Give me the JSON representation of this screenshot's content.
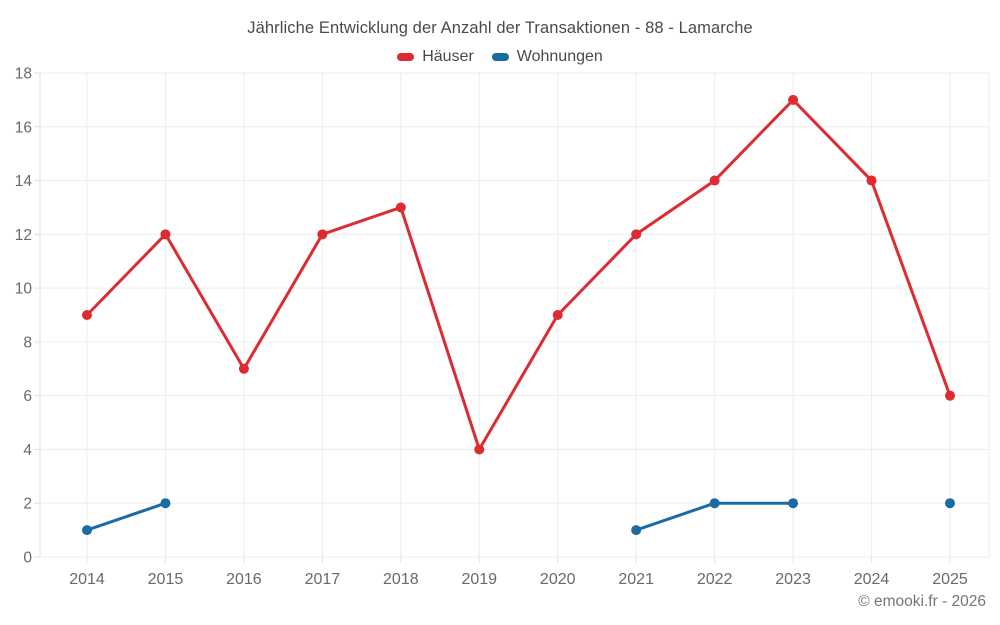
{
  "footer": "© emooki.fr - 2026",
  "theme": {
    "background": "#ffffff",
    "grid_color": "#ededed",
    "axis_color": "#e0e0e0",
    "tick_text_color": "#696969",
    "title_text_color": "#4a4a4a",
    "footer_text_color": "#757575"
  },
  "chart_data": {
    "type": "line",
    "title": "Jährliche Entwicklung der Anzahl der Transaktionen - 88 - Lamarche",
    "categories": [
      "2014",
      "2015",
      "2016",
      "2017",
      "2018",
      "2019",
      "2020",
      "2021",
      "2022",
      "2023",
      "2024",
      "2025"
    ],
    "series": [
      {
        "id": "haeuser",
        "name": "Häuser",
        "color": "#dc2c32",
        "values": [
          9,
          12,
          7,
          12,
          13,
          4,
          9,
          12,
          14,
          17,
          14,
          6
        ]
      },
      {
        "id": "wohnungen",
        "name": "Wohnungen",
        "color": "#1a6ba3",
        "values": [
          1,
          2,
          null,
          null,
          null,
          null,
          null,
          1,
          2,
          2,
          null,
          2
        ]
      }
    ],
    "xlabel": "",
    "ylabel": "",
    "ylim": [
      0,
      18
    ],
    "ytick_step": 2,
    "grid": true,
    "legend_position": "top"
  }
}
